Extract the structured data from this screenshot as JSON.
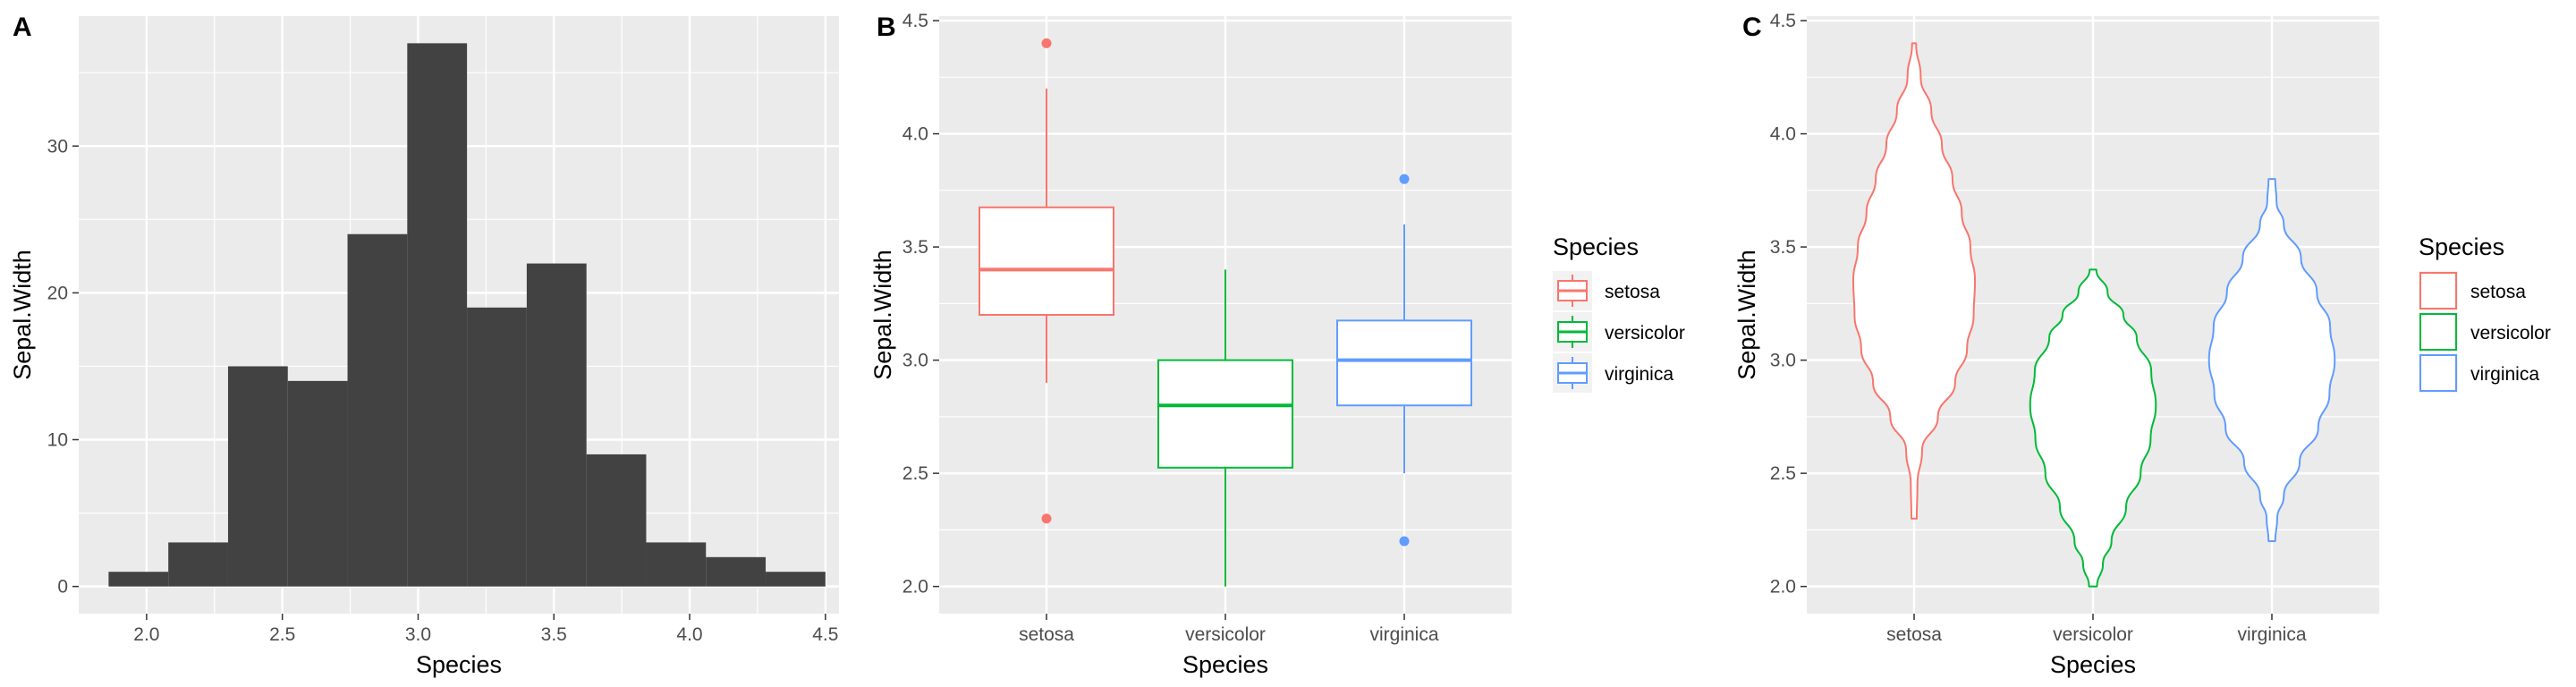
{
  "chart_data": [
    {
      "panel": "A",
      "type": "histogram",
      "xlabel": "Species",
      "ylabel": "Sepal.Width",
      "xlim": [
        1.75,
        4.55
      ],
      "ylim": [
        -1.85,
        38.85
      ],
      "x_ticks": [
        "2.0",
        "2.5",
        "3.0",
        "3.5",
        "4.0",
        "4.5"
      ],
      "y_ticks": [
        "0",
        "10",
        "20",
        "30"
      ],
      "bar_color": "#424242",
      "bins": [
        {
          "x0": 1.86,
          "x1": 2.08,
          "count": 1
        },
        {
          "x0": 2.08,
          "x1": 2.3,
          "count": 3
        },
        {
          "x0": 2.3,
          "x1": 2.52,
          "count": 15
        },
        {
          "x0": 2.52,
          "x1": 2.74,
          "count": 14
        },
        {
          "x0": 2.74,
          "x1": 2.96,
          "count": 24
        },
        {
          "x0": 2.96,
          "x1": 3.18,
          "count": 37
        },
        {
          "x0": 3.18,
          "x1": 3.4,
          "count": 19
        },
        {
          "x0": 3.4,
          "x1": 3.62,
          "count": 22
        },
        {
          "x0": 3.62,
          "x1": 3.84,
          "count": 9
        },
        {
          "x0": 3.84,
          "x1": 4.06,
          "count": 3
        },
        {
          "x0": 4.06,
          "x1": 4.28,
          "count": 2
        },
        {
          "x0": 4.28,
          "x1": 4.5,
          "count": 1
        }
      ]
    },
    {
      "panel": "B",
      "type": "boxplot",
      "xlabel": "Species",
      "ylabel": "Sepal.Width",
      "ylim": [
        1.88,
        4.52
      ],
      "y_ticks": [
        "2.0",
        "2.5",
        "3.0",
        "3.5",
        "4.0",
        "4.5"
      ],
      "categories": [
        "setosa",
        "versicolor",
        "virginica"
      ],
      "boxes": [
        {
          "category": "setosa",
          "color": "#F8766D",
          "lower_whisker": 2.9,
          "q1": 3.2,
          "median": 3.4,
          "q3": 3.675,
          "upper_whisker": 4.2,
          "outliers": [
            4.4,
            2.3
          ]
        },
        {
          "category": "versicolor",
          "color": "#00BA38",
          "lower_whisker": 2.0,
          "q1": 2.525,
          "median": 2.8,
          "q3": 3.0,
          "upper_whisker": 3.4,
          "outliers": []
        },
        {
          "category": "virginica",
          "color": "#619CFF",
          "lower_whisker": 2.5,
          "q1": 2.8,
          "median": 3.0,
          "q3": 3.175,
          "upper_whisker": 3.6,
          "outliers": [
            3.8,
            2.2
          ]
        }
      ],
      "legend": {
        "title": "Species",
        "entries": [
          "setosa",
          "versicolor",
          "virginica"
        ]
      }
    },
    {
      "panel": "C",
      "type": "violin",
      "xlabel": "Species",
      "ylabel": "Sepal.Width",
      "ylim": [
        1.88,
        4.52
      ],
      "y_ticks": [
        "2.0",
        "2.5",
        "3.0",
        "3.5",
        "4.0",
        "4.5"
      ],
      "categories": [
        "setosa",
        "versicolor",
        "virginica"
      ],
      "violins": [
        {
          "category": "setosa",
          "color": "#F8766D",
          "profile": [
            [
              2.3,
              0.04
            ],
            [
              2.45,
              0.05
            ],
            [
              2.6,
              0.12
            ],
            [
              2.75,
              0.36
            ],
            [
              2.9,
              0.62
            ],
            [
              3.05,
              0.8
            ],
            [
              3.2,
              0.9
            ],
            [
              3.35,
              0.92
            ],
            [
              3.5,
              0.85
            ],
            [
              3.65,
              0.72
            ],
            [
              3.8,
              0.58
            ],
            [
              3.95,
              0.42
            ],
            [
              4.1,
              0.26
            ],
            [
              4.25,
              0.1
            ],
            [
              4.4,
              0.03
            ]
          ]
        },
        {
          "category": "versicolor",
          "color": "#00BA38",
          "profile": [
            [
              2.0,
              0.06
            ],
            [
              2.1,
              0.15
            ],
            [
              2.2,
              0.28
            ],
            [
              2.35,
              0.5
            ],
            [
              2.5,
              0.72
            ],
            [
              2.65,
              0.87
            ],
            [
              2.8,
              0.95
            ],
            [
              2.95,
              0.88
            ],
            [
              3.1,
              0.66
            ],
            [
              3.2,
              0.46
            ],
            [
              3.3,
              0.22
            ],
            [
              3.4,
              0.05
            ]
          ]
        },
        {
          "category": "virginica",
          "color": "#619CFF",
          "profile": [
            [
              2.2,
              0.05
            ],
            [
              2.3,
              0.08
            ],
            [
              2.4,
              0.18
            ],
            [
              2.55,
              0.42
            ],
            [
              2.7,
              0.7
            ],
            [
              2.85,
              0.87
            ],
            [
              3.0,
              0.95
            ],
            [
              3.15,
              0.88
            ],
            [
              3.3,
              0.68
            ],
            [
              3.45,
              0.44
            ],
            [
              3.6,
              0.18
            ],
            [
              3.7,
              0.07
            ],
            [
              3.8,
              0.05
            ]
          ]
        }
      ],
      "legend": {
        "title": "Species",
        "entries": [
          "setosa",
          "versicolor",
          "virginica"
        ]
      }
    }
  ]
}
